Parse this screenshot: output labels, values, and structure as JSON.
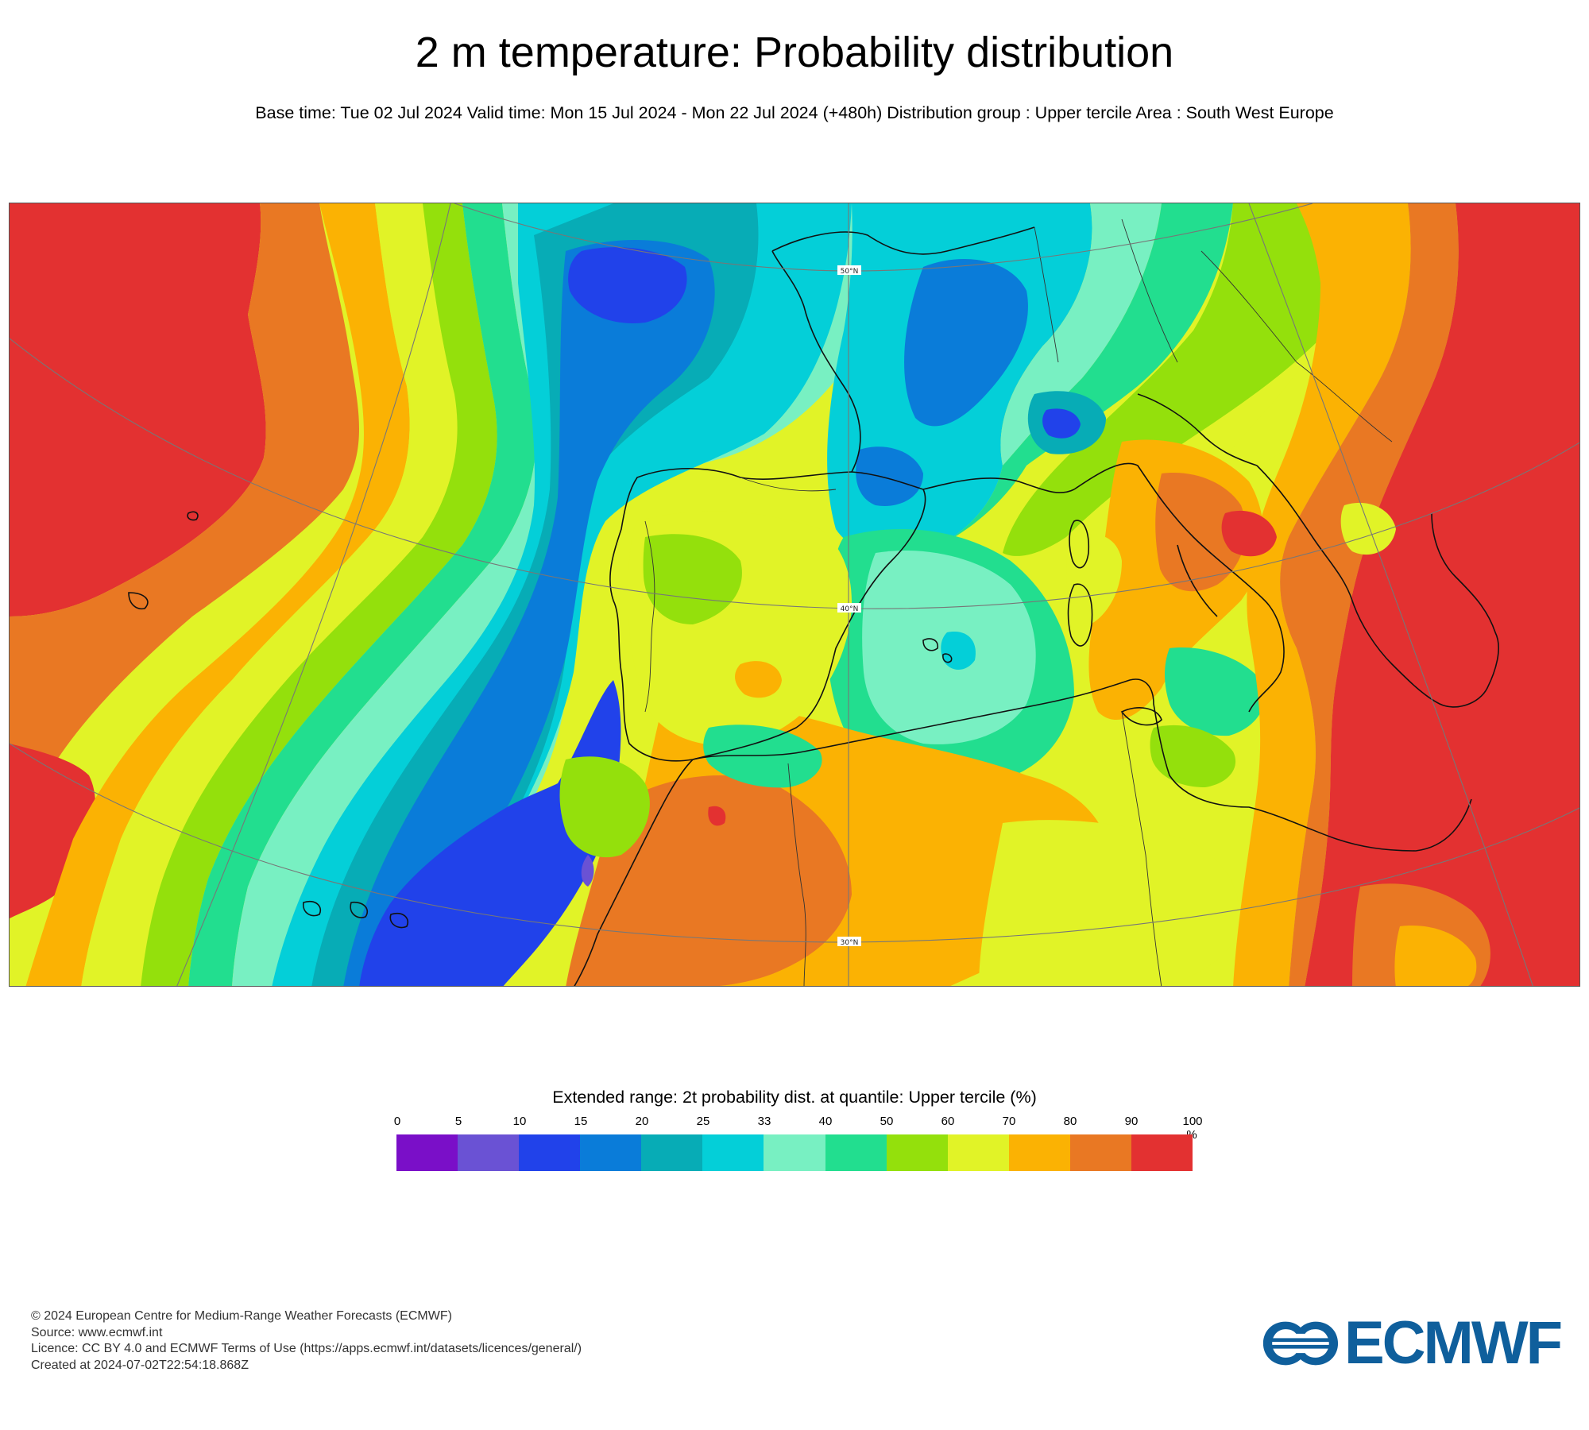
{
  "header": {
    "title": "2 m temperature: Probability distribution",
    "subtitle": "Base time: Tue 02 Jul 2024 Valid time: Mon 15 Jul 2024 - Mon 22 Jul 2024 (+480h) Distribution group : Upper tercile Area : South West Europe"
  },
  "map": {
    "area": "South West Europe",
    "latitude_labels": [
      "50°N",
      "40°N",
      "30°N"
    ],
    "palette": {
      "p0_5": "#7a0fc8",
      "p5_10": "#6a52d4",
      "p10_15": "#2142ea",
      "p15_20": "#0a7cd9",
      "p20_25": "#07acb6",
      "p25_33": "#04cfd8",
      "p33_40": "#78f0c2",
      "p40_50": "#22de8f",
      "p50_60": "#94e00c",
      "p60_70": "#e1f327",
      "p70_80": "#fbb203",
      "p80_90": "#e97823",
      "p90_100": "#e33131"
    }
  },
  "legend": {
    "title": "Extended range: 2t probability dist. at quantile: Upper tercile (%)",
    "ticks": [
      "0",
      "5",
      "10",
      "15",
      "20",
      "25",
      "33",
      "40",
      "50",
      "60",
      "70",
      "80",
      "90",
      "100"
    ],
    "unit": "%",
    "colors": [
      "#7a0fc8",
      "#6a52d4",
      "#2142ea",
      "#0a7cd9",
      "#07acb6",
      "#04cfd8",
      "#78f0c2",
      "#22de8f",
      "#94e00c",
      "#e1f327",
      "#fbb203",
      "#e97823",
      "#e33131"
    ]
  },
  "footer": {
    "copyright": "© 2024 European Centre for Medium-Range Weather Forecasts (ECMWF)",
    "source": "Source: www.ecmwf.int",
    "licence": "Licence: CC BY 4.0 and ECMWF Terms of Use (https://apps.ecmwf.int/datasets/licences/general/)",
    "created": "Created at 2024-07-02T22:54:18.868Z"
  },
  "logo": {
    "text": "ECMWF",
    "color": "#0f5f9c",
    "icon": "ecmwf-logo-icon"
  }
}
